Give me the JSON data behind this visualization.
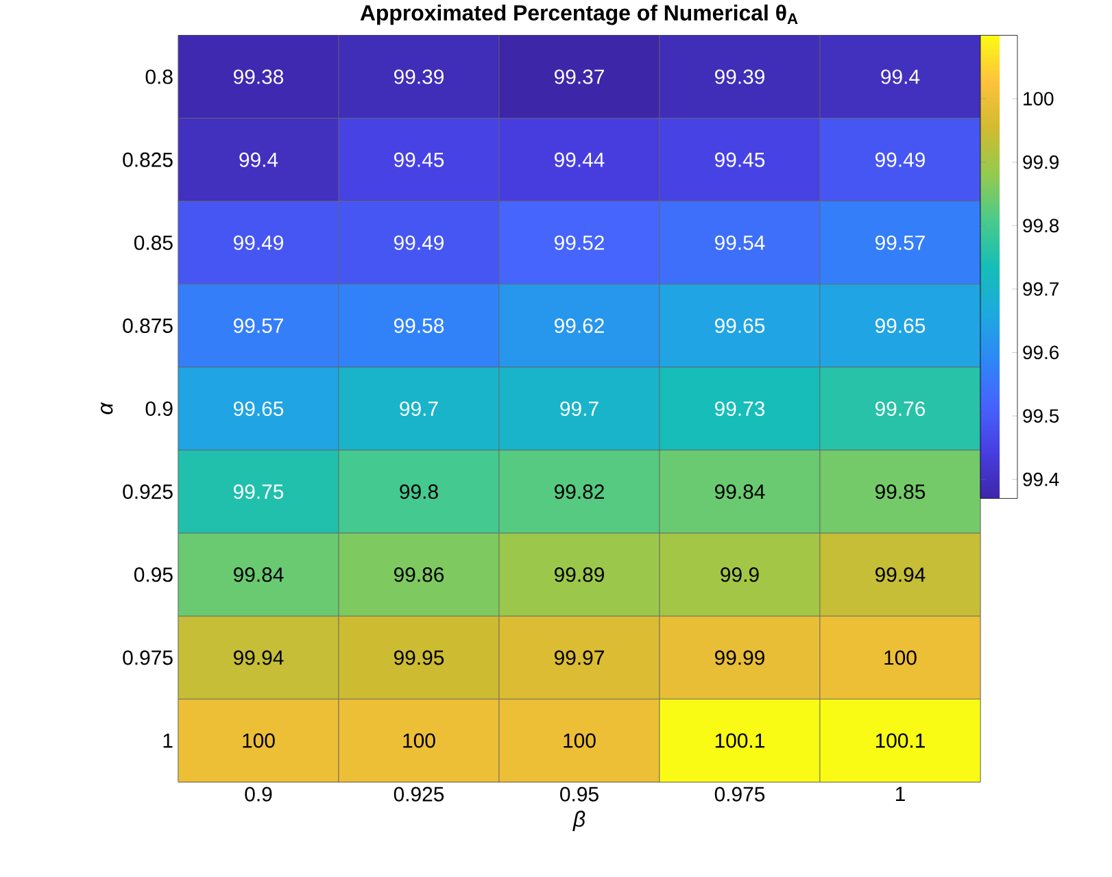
{
  "chart_data": {
    "type": "heatmap",
    "title": "Approximated Percentage of Numerical θ$_{A}$",
    "xlabel": "β",
    "ylabel": "α",
    "categories": [
      "0.9",
      "0.925",
      "0.95",
      "0.975",
      "1"
    ],
    "y_categories": [
      "0.8",
      "0.825",
      "0.85",
      "0.875",
      "0.9",
      "0.925",
      "0.95",
      "0.975",
      "1"
    ],
    "cells": [
      [
        99.38,
        99.39,
        99.37,
        99.39,
        99.4
      ],
      [
        99.4,
        99.45,
        99.44,
        99.45,
        99.49
      ],
      [
        99.49,
        99.49,
        99.52,
        99.54,
        99.57
      ],
      [
        99.57,
        99.58,
        99.62,
        99.65,
        99.65
      ],
      [
        99.65,
        99.7,
        99.7,
        99.73,
        99.76
      ],
      [
        99.75,
        99.8,
        99.82,
        99.84,
        99.85
      ],
      [
        99.84,
        99.86,
        99.89,
        99.9,
        99.94
      ],
      [
        99.94,
        99.95,
        99.97,
        99.99,
        100
      ],
      [
        100,
        100,
        100,
        100.1,
        100.1
      ]
    ],
    "data_labels": true,
    "clim": [
      99.37,
      100.1
    ],
    "cticks": [
      99.4,
      99.5,
      99.6,
      99.7,
      99.8,
      99.9,
      100
    ]
  }
}
